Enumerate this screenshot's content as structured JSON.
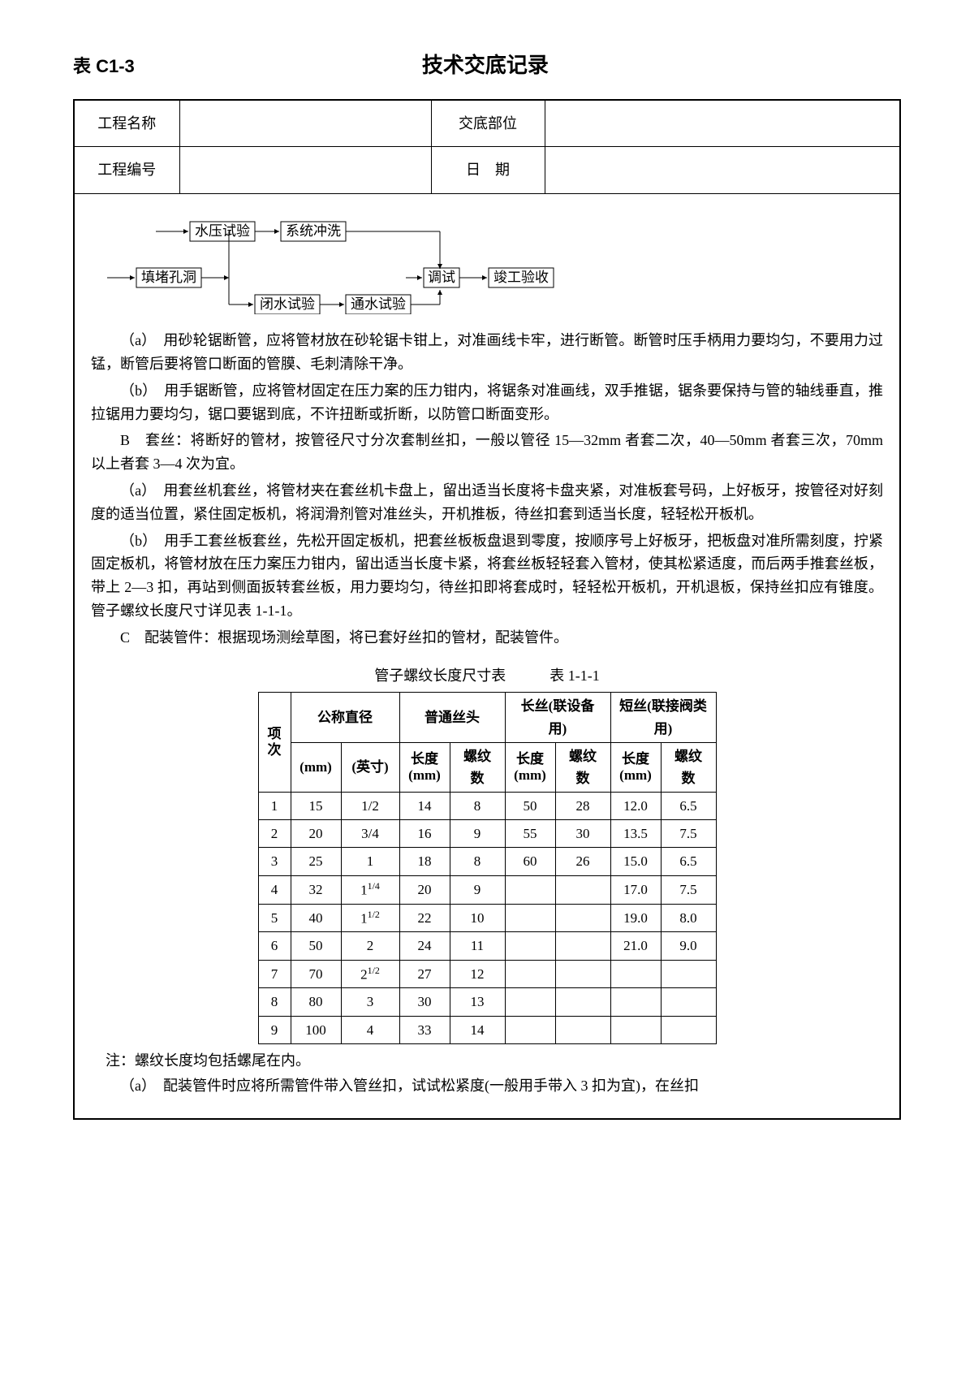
{
  "header": {
    "table_id": "表 C1-3",
    "title": "技术交底记录"
  },
  "info": {
    "row1_label1": "工程名称",
    "row1_val1": "",
    "row1_label2": "交底部位",
    "row1_val2": "",
    "row2_label1": "工程编号",
    "row2_val1": "",
    "row2_label2": "日　期",
    "row2_val2": ""
  },
  "flow": {
    "n1": "水压试验",
    "n2": "系统冲洗",
    "n3": "填堵孔洞",
    "n4": "闭水试验",
    "n5": "通水试验",
    "n6": "调试",
    "n7": "竣工验收"
  },
  "body": {
    "p_a1": "（a）　用砂轮锯断管，应将管材放在砂轮锯卡钳上，对准画线卡牢，进行断管。断管时压手柄用力要均匀，不要用力过锰，断管后要将管口断面的管膜、毛刺清除干净。",
    "p_b1": "（b）　用手锯断管，应将管材固定在压力案的压力钳内，将锯条对准画线，双手推锯，锯条要保持与管的轴线垂直，推拉锯用力要均匀，锯口要锯到底，不许扭断或折断，以防管口断面变形。",
    "p_B": "B　套丝：将断好的管材，按管径尺寸分次套制丝扣，一般以管径 15—32mm 者套二次，40—50mm 者套三次，70mm 以上者套 3—4 次为宜。",
    "p_a2": "（a）　用套丝机套丝，将管材夹在套丝机卡盘上，留出适当长度将卡盘夹紧，对准板套号码，上好板牙，按管径对好刻度的适当位置，紧住固定板机，将润滑剂管对准丝头，开机推板，待丝扣套到适当长度，轻轻松开板机。",
    "p_b2": "（b）　用手工套丝板套丝，先松开固定板机，把套丝板板盘退到零度，按顺序号上好板牙，把板盘对准所需刻度，拧紧固定板机，将管材放在压力案压力钳内，留出适当长度卡紧，将套丝板轻轻套入管材，使其松紧适度，而后两手推套丝板，带上 2—3 扣，再站到侧面扳转套丝板，用力要均匀，待丝扣即将套成时，轻轻松开板机，开机退板，保持丝扣应有锥度。管子螺纹长度尺寸详见表 1-1-1。",
    "p_C": "C　配装管件：根据现场测绘草图，将已套好丝扣的管材，配装管件。",
    "table_title": "管子螺纹长度尺寸表　　　表 1-1-1",
    "note": "注：螺纹长度均包括螺尾在内。",
    "p_a3": "（a）　配装管件时应将所需管件带入管丝扣，试试松紧度(一般用手带入 3 扣为宜)，在丝扣"
  },
  "thread_table": {
    "h_item": "项",
    "h_ci": "次",
    "h_nominal": "公称直径",
    "h_normal": "普通丝头",
    "h_long": "长丝(联设备用)",
    "h_short": "短丝(联接阀类用)",
    "h_mm": "(mm)",
    "h_inch": "(英寸)",
    "h_len": "长度",
    "h_len_mm": "(mm)",
    "h_threads": "螺纹数",
    "rows": [
      {
        "n": "1",
        "mm": "15",
        "inch": "1/2",
        "nl": "14",
        "nt": "8",
        "ll": "50",
        "lt": "28",
        "sl": "12.0",
        "st": "6.5"
      },
      {
        "n": "2",
        "mm": "20",
        "inch": "3/4",
        "nl": "16",
        "nt": "9",
        "ll": "55",
        "lt": "30",
        "sl": "13.5",
        "st": "7.5"
      },
      {
        "n": "3",
        "mm": "25",
        "inch": "1",
        "nl": "18",
        "nt": "8",
        "ll": "60",
        "lt": "26",
        "sl": "15.0",
        "st": "6.5"
      },
      {
        "n": "4",
        "mm": "32",
        "inch": "1",
        "inch_sup": "1/4",
        "nl": "20",
        "nt": "9",
        "ll": "",
        "lt": "",
        "sl": "17.0",
        "st": "7.5"
      },
      {
        "n": "5",
        "mm": "40",
        "inch": "1",
        "inch_sup": "1/2",
        "nl": "22",
        "nt": "10",
        "ll": "",
        "lt": "",
        "sl": "19.0",
        "st": "8.0"
      },
      {
        "n": "6",
        "mm": "50",
        "inch": "2",
        "nl": "24",
        "nt": "11",
        "ll": "",
        "lt": "",
        "sl": "21.0",
        "st": "9.0"
      },
      {
        "n": "7",
        "mm": "70",
        "inch": "2",
        "inch_sup": "1/2",
        "nl": "27",
        "nt": "12",
        "ll": "",
        "lt": "",
        "sl": "",
        "st": ""
      },
      {
        "n": "8",
        "mm": "80",
        "inch": "3",
        "nl": "30",
        "nt": "13",
        "ll": "",
        "lt": "",
        "sl": "",
        "st": ""
      },
      {
        "n": "9",
        "mm": "100",
        "inch": "4",
        "nl": "33",
        "nt": "14",
        "ll": "",
        "lt": "",
        "sl": "",
        "st": ""
      }
    ]
  }
}
